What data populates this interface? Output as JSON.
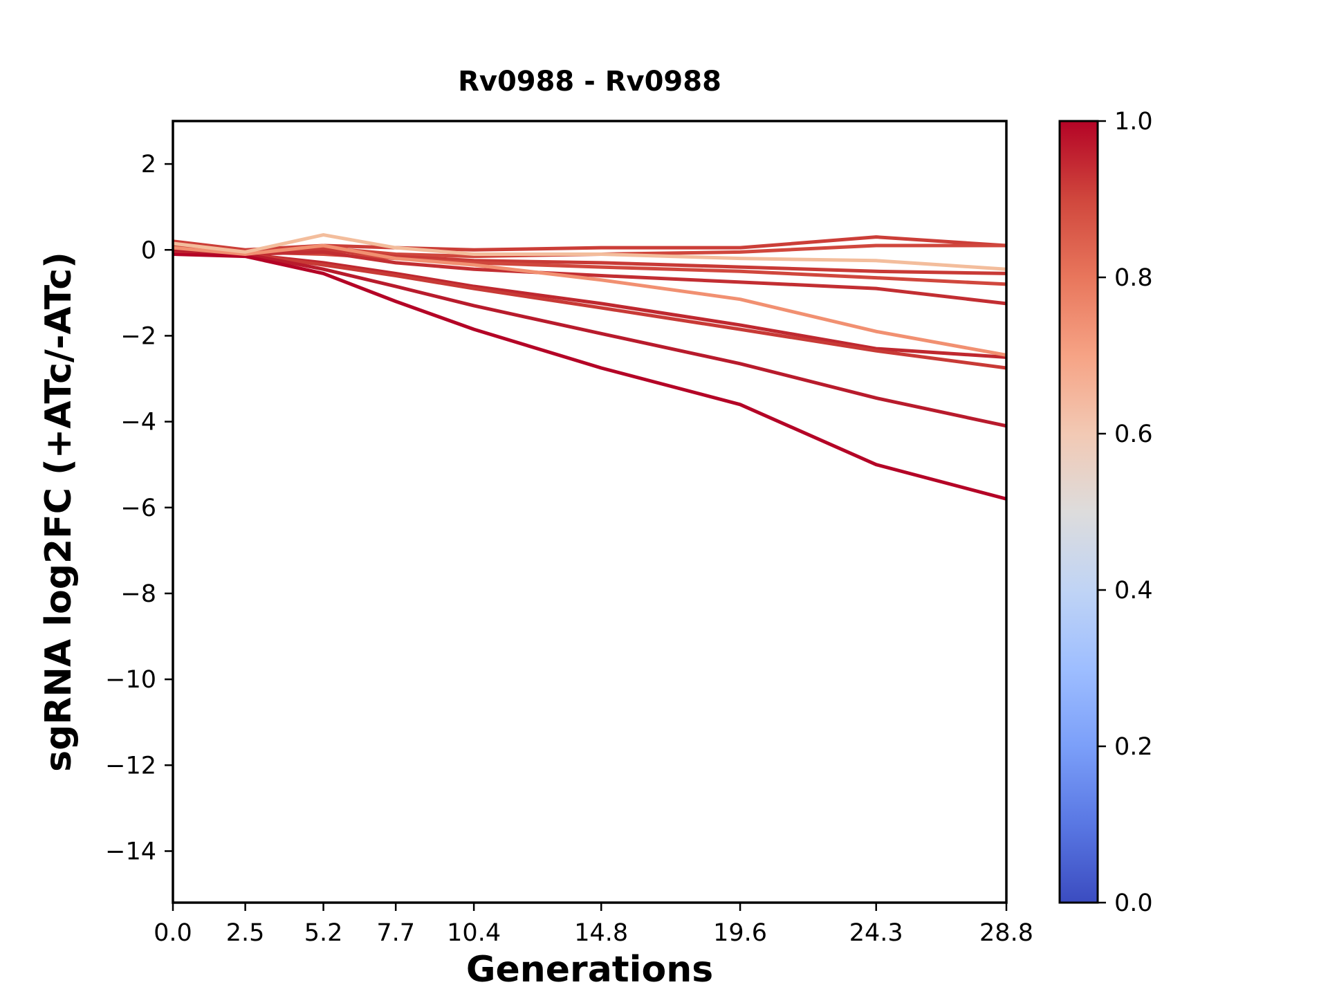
{
  "title": "Rv0988 - Rv0988",
  "chart_data": {
    "type": "line",
    "title": "Rv0988 - Rv0988",
    "xlabel": "Generations",
    "ylabel": "sgRNA log2FC (+ATc/-ATc)",
    "x": [
      0.0,
      2.5,
      5.2,
      7.7,
      10.4,
      14.8,
      19.6,
      24.3,
      28.8
    ],
    "xlim": [
      0.0,
      28.8
    ],
    "ylim": [
      -15.2,
      3.0
    ],
    "grid": false,
    "legend": false,
    "xtick_values": [
      0.0,
      2.5,
      5.2,
      7.7,
      10.4,
      14.8,
      19.6,
      24.3,
      28.8
    ],
    "xticklabels": [
      "0.0",
      "2.5",
      "5.2",
      "7.7",
      "10.4",
      "14.8",
      "19.6",
      "24.3",
      "28.8"
    ],
    "ytick_values": [
      2,
      0,
      -2,
      -4,
      -6,
      -8,
      -10,
      -12,
      -14
    ],
    "yticklabels": [
      "2",
      "0",
      "−2",
      "−4",
      "−6",
      "−8",
      "−10",
      "−12",
      "−14"
    ],
    "series": [
      {
        "name": "line_1",
        "colormap_value": 0.92,
        "color": "#cb3e38",
        "values": [
          0.2,
          0.0,
          0.1,
          0.05,
          0.0,
          0.05,
          0.05,
          0.3,
          0.1
        ]
      },
      {
        "name": "line_2",
        "colormap_value": 0.9,
        "color": "#d0473d",
        "values": [
          0.1,
          -0.05,
          0.05,
          -0.1,
          -0.15,
          -0.1,
          -0.05,
          0.1,
          0.1
        ]
      },
      {
        "name": "line_3",
        "colormap_value": 0.93,
        "color": "#c83a36",
        "values": [
          0.05,
          -0.05,
          0.0,
          -0.15,
          -0.25,
          -0.3,
          -0.4,
          -0.5,
          -0.55
        ]
      },
      {
        "name": "line_4",
        "colormap_value": 0.9,
        "color": "#d0473d",
        "values": [
          0.0,
          -0.05,
          -0.1,
          -0.2,
          -0.3,
          -0.4,
          -0.5,
          -0.65,
          -0.8
        ]
      },
      {
        "name": "line_5",
        "colormap_value": 0.95,
        "color": "#c22e32",
        "values": [
          -0.05,
          -0.1,
          -0.05,
          -0.3,
          -0.45,
          -0.6,
          -0.75,
          -0.9,
          -1.25
        ]
      },
      {
        "name": "line_6",
        "colormap_value": 0.96,
        "color": "#bf282f",
        "values": [
          0.0,
          -0.1,
          -0.3,
          -0.55,
          -0.85,
          -1.25,
          -1.75,
          -2.3,
          -2.5
        ]
      },
      {
        "name": "line_7",
        "colormap_value": 0.93,
        "color": "#c83a36",
        "values": [
          -0.05,
          -0.1,
          -0.35,
          -0.6,
          -0.9,
          -1.35,
          -1.85,
          -2.35,
          -2.75
        ]
      },
      {
        "name": "line_8",
        "colormap_value": 0.98,
        "color": "#b81b2c",
        "values": [
          0.0,
          -0.1,
          -0.45,
          -0.85,
          -1.3,
          -1.95,
          -2.65,
          -3.45,
          -4.1
        ]
      },
      {
        "name": "line_9",
        "colormap_value": 1.0,
        "color": "#b40426",
        "values": [
          -0.1,
          -0.15,
          -0.55,
          -1.2,
          -1.85,
          -2.75,
          -3.6,
          -5.0,
          -5.8
        ]
      },
      {
        "name": "line_10",
        "colormap_value": 0.74,
        "color": "#f19071",
        "values": [
          0.05,
          -0.1,
          0.1,
          -0.2,
          -0.35,
          -0.7,
          -1.15,
          -1.9,
          -2.45
        ]
      },
      {
        "name": "line_11",
        "colormap_value": 0.62,
        "color": "#f3bd9c",
        "values": [
          0.15,
          -0.05,
          0.35,
          0.05,
          -0.1,
          -0.1,
          -0.2,
          -0.25,
          -0.45
        ]
      }
    ],
    "colorbar": {
      "min": 0.0,
      "max": 1.0,
      "ticks": [
        0.0,
        0.2,
        0.4,
        0.6,
        0.8,
        1.0
      ],
      "tick_labels": [
        "0.0",
        "0.2",
        "0.4",
        "0.6",
        "0.8",
        "1.0"
      ],
      "colormap": "coolwarm",
      "stops": [
        [
          0.0,
          "#3b4cc0"
        ],
        [
          0.1,
          "#5977e3"
        ],
        [
          0.2,
          "#7b9ff9"
        ],
        [
          0.3,
          "#9ebeff"
        ],
        [
          0.4,
          "#c0d4f5"
        ],
        [
          0.5,
          "#dddcdc"
        ],
        [
          0.6,
          "#f2c9b4"
        ],
        [
          0.7,
          "#f6a385"
        ],
        [
          0.8,
          "#e8765c"
        ],
        [
          0.9,
          "#d0473d"
        ],
        [
          1.0,
          "#b40426"
        ]
      ]
    }
  }
}
